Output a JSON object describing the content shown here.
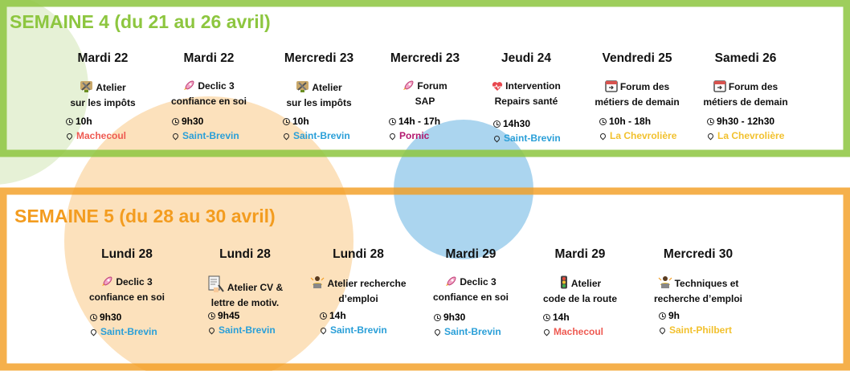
{
  "colors": {
    "green": "#8dc63f",
    "orange": "#f39c1f",
    "light_orange": "#fbdcb0",
    "blue": "#8fc7ea",
    "red": "#ee5a52",
    "loc_blue": "#2a9fd8",
    "loc_purple": "#b3186e",
    "loc_yellow": "#f2c12e"
  },
  "week4": {
    "title": "SEMAINE 4 (du 21 au 26 avril)",
    "events": [
      {
        "day": "Mardi 22",
        "title_lines": [
          "Atelier",
          "sur les impôts"
        ],
        "icon": "tools-icon",
        "time": "10h",
        "location": "Machecoul",
        "loc_color": "#ee5a52"
      },
      {
        "day": "Mardi 22",
        "title_lines": [
          "Declic 3",
          "confiance en soi"
        ],
        "icon": "rocket-icon",
        "time": "9h30",
        "location": "Saint-Brevin",
        "loc_color": "#2a9fd8"
      },
      {
        "day": "Mercredi 23",
        "title_lines": [
          "Atelier",
          "sur les impôts"
        ],
        "icon": "tools-icon",
        "time": "10h",
        "location": "Saint-Brevin",
        "loc_color": "#2a9fd8"
      },
      {
        "day": "Mercredi 23",
        "title_lines": [
          "Forum",
          "SAP"
        ],
        "icon": "rocket-icon",
        "time": "14h - 17h",
        "location": "Pornic",
        "loc_color": "#b3186e"
      },
      {
        "day": "Jeudi 24",
        "title_lines": [
          "Intervention",
          "Repairs santé"
        ],
        "icon": "heart-icon",
        "time": "14h30",
        "location": "Saint-Brevin",
        "loc_color": "#2a9fd8"
      },
      {
        "day": "Vendredi 25",
        "title_lines": [
          "Forum des",
          "métiers de demain"
        ],
        "icon": "calendar-icon",
        "time": "10h - 18h",
        "location": "La Chevrolière",
        "loc_color": "#f2c12e"
      },
      {
        "day": "Samedi 26",
        "title_lines": [
          "Forum des",
          "métiers de demain"
        ],
        "icon": "calendar-icon",
        "time": "9h30 - 12h30",
        "location": "La Chevrolière",
        "loc_color": "#f2c12e"
      }
    ]
  },
  "week5": {
    "title": "SEMAINE 5 (du 28 au 30 avril)",
    "events": [
      {
        "day": "Lundi 28",
        "title_lines": [
          "Declic 3",
          "confiance en soi"
        ],
        "icon": "rocket-icon",
        "time": "9h30",
        "location": "Saint-Brevin",
        "loc_color": "#2a9fd8"
      },
      {
        "day": "Lundi 28",
        "title_lines": [
          "Atelier CV &",
          "lettre de motiv."
        ],
        "icon": "document-icon",
        "time": "9h45",
        "location": "Saint-Brevin",
        "loc_color": "#2a9fd8"
      },
      {
        "day": "Lundi 28",
        "title_lines": [
          "Atelier recherche",
          "d’emploi"
        ],
        "icon": "person-laptop-icon",
        "time": "14h",
        "location": "Saint-Brevin",
        "loc_color": "#2a9fd8"
      },
      {
        "day": "Mardi 29",
        "title_lines": [
          "Declic 3",
          "confiance en soi"
        ],
        "icon": "rocket-icon",
        "time": "9h30",
        "location": "Saint-Brevin",
        "loc_color": "#2a9fd8"
      },
      {
        "day": "Mardi 29",
        "title_lines": [
          "Atelier",
          "code de la route"
        ],
        "icon": "traffic-light-icon",
        "time": "14h",
        "location": "Machecoul",
        "loc_color": "#ee5a52"
      },
      {
        "day": "Mercredi 30",
        "title_lines": [
          "Techniques et",
          "recherche d’emploi"
        ],
        "icon": "person-laptop-icon",
        "time": "9h",
        "location": "Saint-Philbert",
        "loc_color": "#f2c12e"
      }
    ]
  }
}
